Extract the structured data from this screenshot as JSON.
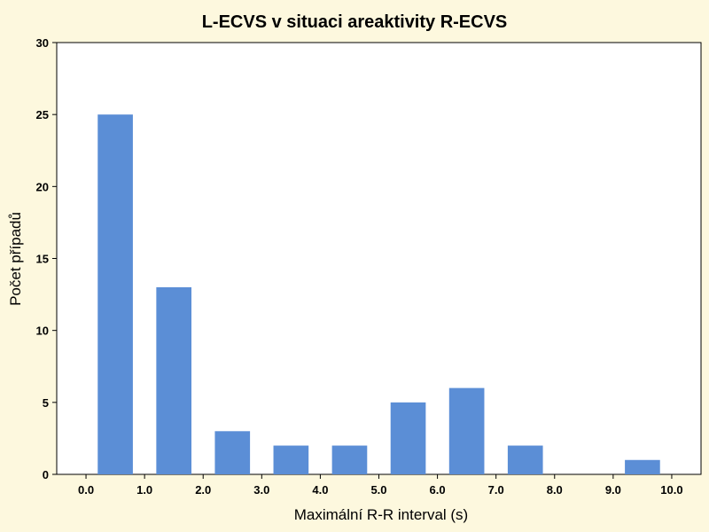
{
  "chart_data": {
    "type": "bar",
    "title": "L-ECVS v situaci areaktivity R-ECVS",
    "xlabel": "Maximální R-R interval (s)",
    "ylabel": "Počet případů",
    "x_ticks": [
      "0.0",
      "1.0",
      "2.0",
      "3.0",
      "4.0",
      "5.0",
      "6.0",
      "7.0",
      "8.0",
      "9.0",
      "10.0"
    ],
    "y_ticks": [
      "0",
      "5",
      "10",
      "15",
      "20",
      "25",
      "30"
    ],
    "bins": [
      {
        "from": 0,
        "to": 1,
        "value": 25
      },
      {
        "from": 1,
        "to": 2,
        "value": 13
      },
      {
        "from": 2,
        "to": 3,
        "value": 3
      },
      {
        "from": 3,
        "to": 4,
        "value": 2
      },
      {
        "from": 4,
        "to": 5,
        "value": 2
      },
      {
        "from": 5,
        "to": 6,
        "value": 5
      },
      {
        "from": 6,
        "to": 7,
        "value": 6
      },
      {
        "from": 7,
        "to": 8,
        "value": 2
      },
      {
        "from": 8,
        "to": 9,
        "value": 0
      },
      {
        "from": 9,
        "to": 10,
        "value": 1
      }
    ],
    "xlim": [
      -0.5,
      10.5
    ],
    "ylim": [
      0,
      30
    ],
    "grid": false,
    "bar_color": "#5b8ed6",
    "background_color": "#fdf8de",
    "plot_background_color": "#ffffff"
  }
}
